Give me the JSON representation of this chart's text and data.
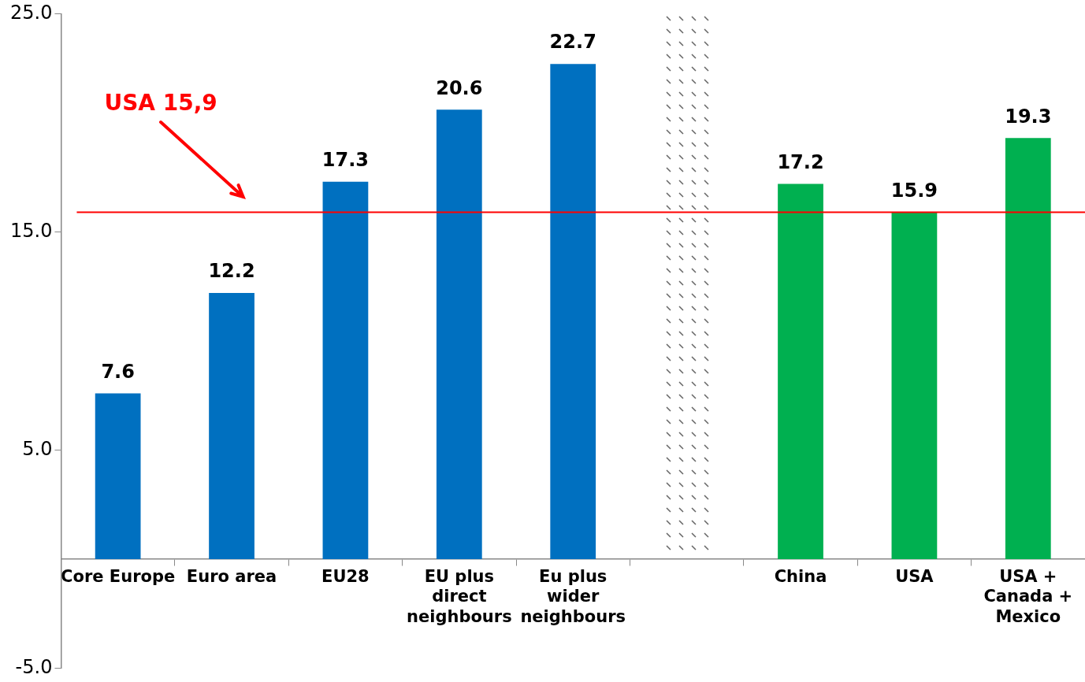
{
  "chart_data": {
    "type": "bar",
    "categories": [
      "Core Europe",
      "Euro area",
      "EU28",
      "EU plus direct neighbours",
      "Eu plus wider neighbours",
      null,
      "China",
      "USA",
      "USA + Canada + Mexico"
    ],
    "values": [
      7.6,
      12.2,
      17.3,
      20.6,
      22.7,
      null,
      17.2,
      15.9,
      19.3
    ],
    "colors": [
      "#0070c0",
      "#0070c0",
      "#0070c0",
      "#0070c0",
      "#0070c0",
      "#0070c0",
      "#00b050",
      "#00b050",
      "#00b050"
    ],
    "ylim": [
      -5,
      25
    ],
    "yticks": [
      {
        "value": -5,
        "label": "-5.0"
      },
      {
        "value": 5,
        "label": "5.0"
      },
      {
        "value": 15,
        "label": "15.0"
      },
      {
        "value": 25,
        "label": "25.0"
      }
    ],
    "ref_lines": [
      {
        "axis": "y",
        "value": 15.9,
        "label": "USA 15,9",
        "color": "#ff0000",
        "line_style": "solid"
      }
    ],
    "data_labels": true,
    "grid": false,
    "legend": false
  }
}
